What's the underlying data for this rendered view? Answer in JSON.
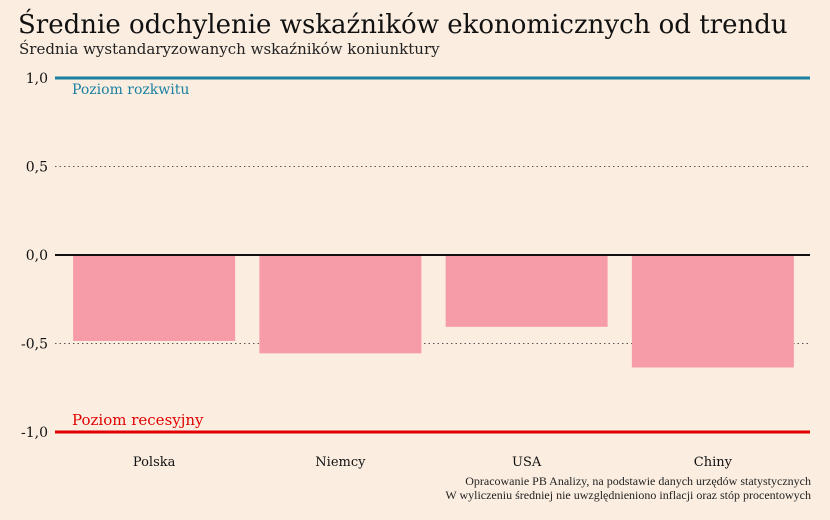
{
  "chart_data": {
    "type": "bar",
    "title": "Średnie odchylenie wskaźników ekonomicznych od trendu",
    "subtitle": "Średnia wystandaryzowanych wskaźników koniunktury",
    "categories": [
      "Polska",
      "Niemcy",
      "USA",
      "Chiny"
    ],
    "values": [
      -0.48,
      -0.55,
      -0.4,
      -0.63
    ],
    "ylim": [
      -1.0,
      1.0
    ],
    "yticks": [
      1.0,
      0.5,
      0.0,
      -0.5,
      -1.0
    ],
    "ytick_labels": [
      "1,0",
      "0,5",
      "0,0",
      "-0,5",
      "-1,0"
    ],
    "grid": "dotted horizontal",
    "reference_lines": [
      {
        "value": 1.0,
        "label": "Poziom rozkwitu",
        "color": "#1a7fa0"
      },
      {
        "value": -1.0,
        "label": "Poziom recesyjny",
        "color": "#e00000"
      }
    ],
    "bar_color": "#f69ca9",
    "notes": [
      "Opracowanie PB Analizy, na podstawie danych urzędów statystycznych",
      "W wyliczeniu średniej nie uwzględnieniono inflacji oraz stóp procentowych"
    ]
  }
}
